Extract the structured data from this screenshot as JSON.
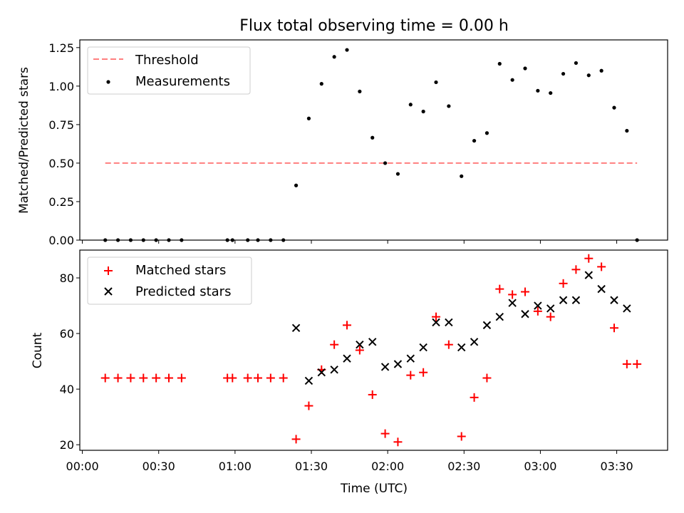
{
  "chart_data": [
    {
      "type": "scatter",
      "title": "Flux total observing time = 0.00 h",
      "xlabel": "",
      "ylabel": "Matched/Predicted stars",
      "xlim": [
        "23:59",
        "03:50"
      ],
      "ylim": [
        0.0,
        1.3
      ],
      "yticks": [
        "0.00",
        "0.25",
        "0.50",
        "0.75",
        "1.00",
        "1.25"
      ],
      "legend_position": "upper-left",
      "threshold": {
        "name": "Threshold",
        "value": 0.5,
        "x": [
          "00:09",
          "03:38"
        ],
        "color": "#ff7f7f",
        "style": "dashed"
      },
      "series": [
        {
          "name": "Measurements",
          "marker": "dot",
          "color": "#000000",
          "x": [
            "00:09",
            "00:14",
            "00:19",
            "00:24",
            "00:29",
            "00:34",
            "00:39",
            "00:57",
            "00:59",
            "01:05",
            "01:09",
            "01:14",
            "01:19",
            "01:24",
            "01:29",
            "01:34",
            "01:39",
            "01:44",
            "01:49",
            "01:54",
            "01:59",
            "02:04",
            "02:09",
            "02:14",
            "02:19",
            "02:24",
            "02:29",
            "02:34",
            "02:39",
            "02:44",
            "02:49",
            "02:54",
            "02:59",
            "03:04",
            "03:09",
            "03:14",
            "03:19",
            "03:24",
            "03:29",
            "03:34",
            "03:38"
          ],
          "y": [
            0,
            0,
            0,
            0,
            0,
            0,
            0,
            0,
            0,
            0,
            0,
            0,
            0,
            0.355,
            0.79,
            1.015,
            1.19,
            1.235,
            0.965,
            0.665,
            0.5,
            0.43,
            0.88,
            0.835,
            1.025,
            0.87,
            0.415,
            0.645,
            0.695,
            1.145,
            1.04,
            1.115,
            0.97,
            0.955,
            1.08,
            1.15,
            1.07,
            1.1,
            0.86,
            0.71,
            0
          ]
        }
      ]
    },
    {
      "type": "scatter",
      "title": "",
      "xlabel": "Time (UTC)",
      "ylabel": "Count",
      "xlim": [
        "23:59",
        "03:50"
      ],
      "ylim": [
        18,
        90
      ],
      "yticks": [
        "20",
        "40",
        "60",
        "80"
      ],
      "xticks": [
        "00:00",
        "00:30",
        "01:00",
        "01:30",
        "02:00",
        "02:30",
        "03:00",
        "03:30"
      ],
      "legend_position": "upper-left",
      "series": [
        {
          "name": "Matched stars",
          "marker": "plus",
          "color": "#ff0000",
          "x": [
            "00:09",
            "00:14",
            "00:19",
            "00:24",
            "00:29",
            "00:34",
            "00:39",
            "00:57",
            "00:59",
            "01:05",
            "01:09",
            "01:14",
            "01:19",
            "01:24",
            "01:29",
            "01:34",
            "01:39",
            "01:44",
            "01:49",
            "01:54",
            "01:59",
            "02:04",
            "02:09",
            "02:14",
            "02:19",
            "02:24",
            "02:29",
            "02:34",
            "02:39",
            "02:44",
            "02:49",
            "02:54",
            "02:59",
            "03:04",
            "03:09",
            "03:14",
            "03:19",
            "03:24",
            "03:29",
            "03:34",
            "03:38"
          ],
          "y": [
            44,
            44,
            44,
            44,
            44,
            44,
            44,
            44,
            44,
            44,
            44,
            44,
            44,
            22,
            34,
            47,
            56,
            63,
            54,
            38,
            24,
            21,
            45,
            46,
            66,
            56,
            23,
            37,
            44,
            76,
            74,
            75,
            68,
            66,
            78,
            83,
            87,
            84,
            62,
            49,
            49
          ]
        },
        {
          "name": "Predicted stars",
          "marker": "x",
          "color": "#000000",
          "x": [
            "01:24",
            "01:29",
            "01:34",
            "01:39",
            "01:44",
            "01:49",
            "01:54",
            "01:59",
            "02:04",
            "02:09",
            "02:14",
            "02:19",
            "02:24",
            "02:29",
            "02:34",
            "02:39",
            "02:44",
            "02:49",
            "02:54",
            "02:59",
            "03:04",
            "03:09",
            "03:14",
            "03:19",
            "03:24",
            "03:29",
            "03:34"
          ],
          "y": [
            62,
            43,
            46,
            47,
            51,
            56,
            57,
            48,
            49,
            51,
            55,
            64,
            64,
            55,
            57,
            63,
            66,
            71,
            67,
            70,
            69,
            72,
            72,
            81,
            76,
            72,
            69
          ]
        }
      ]
    }
  ]
}
